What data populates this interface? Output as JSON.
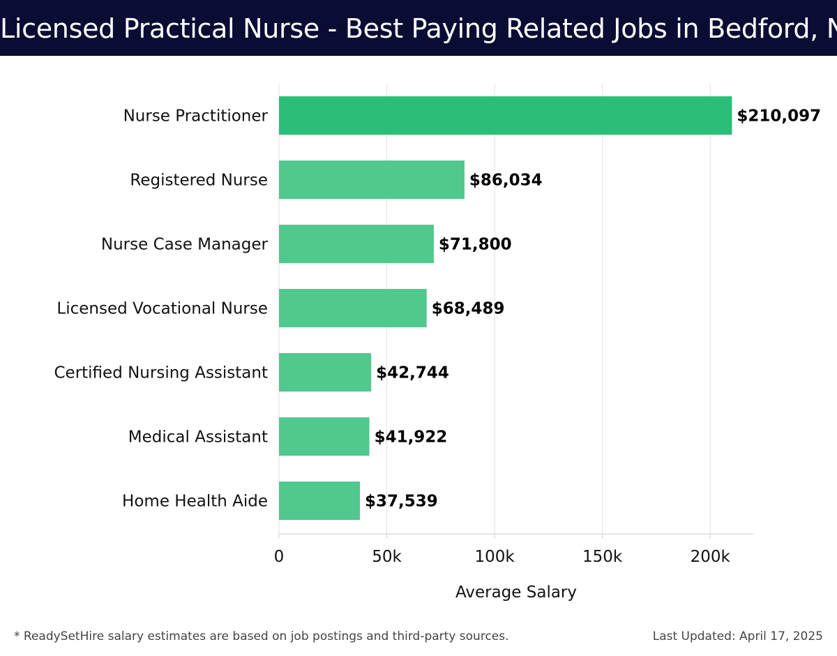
{
  "header": {
    "title": "Licensed Practical Nurse - Best Paying Related Jobs in Bedford, NH"
  },
  "chart_data": {
    "type": "bar",
    "orientation": "horizontal",
    "title": "Licensed Practical Nurse - Best Paying Related Jobs in Bedford, NH",
    "xlabel": "Average Salary",
    "ylabel": "",
    "xlim": [
      0,
      220000
    ],
    "x_ticks": [
      0,
      50000,
      100000,
      150000,
      200000
    ],
    "x_tick_labels": [
      "0",
      "50k",
      "100k",
      "150k",
      "200k"
    ],
    "grid": true,
    "categories": [
      "Nurse Practitioner",
      "Registered Nurse",
      "Nurse Case Manager",
      "Licensed Vocational Nurse",
      "Certified Nursing Assistant",
      "Medical Assistant",
      "Home Health Aide"
    ],
    "values": [
      210097,
      86034,
      71800,
      68489,
      42744,
      41922,
      37539
    ],
    "value_labels": [
      "$210,097",
      "$86,034",
      "$71,800",
      "$68,489",
      "$42,744",
      "$41,922",
      "$37,539"
    ],
    "colors": {
      "highlight": "#2bbe78",
      "bar": "#50c88e",
      "grid": "#e2e2e2",
      "axis": "#cccccc",
      "text": "#111111"
    }
  },
  "footer": {
    "note": "* ReadySetHire salary estimates are based on job postings and third-party sources.",
    "updated": "Last Updated: April 17, 2025"
  }
}
